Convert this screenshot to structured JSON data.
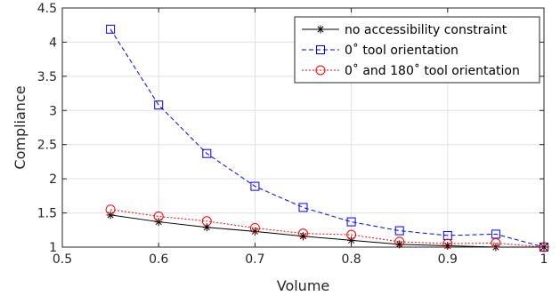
{
  "chart_data": {
    "type": "line",
    "xlabel": "Volume",
    "ylabel": "Compliance",
    "xlim": [
      0.5,
      1.0
    ],
    "ylim": [
      1.0,
      4.5
    ],
    "xticks": [
      0.5,
      0.6,
      0.7,
      0.8,
      0.9,
      1.0
    ],
    "xtick_labels": [
      "0.5",
      "0.6",
      "0.7",
      "0.8",
      "0.9",
      "1"
    ],
    "yticks": [
      1.0,
      1.5,
      2.0,
      2.5,
      3.0,
      3.5,
      4.0,
      4.5
    ],
    "ytick_labels": [
      "1",
      "1.5",
      "2",
      "2.5",
      "3",
      "3.5",
      "4",
      "4.5"
    ],
    "grid": true,
    "legend_position": "top-right",
    "x": [
      0.55,
      0.6,
      0.65,
      0.7,
      0.75,
      0.8,
      0.85,
      0.9,
      0.95,
      1.0
    ],
    "series": [
      {
        "name": "no accessibility constraint",
        "values": [
          1.47,
          1.37,
          1.29,
          1.23,
          1.16,
          1.1,
          1.04,
          1.02,
          1.0,
          1.0
        ],
        "color": "#000000",
        "line_style": "solid",
        "marker": "asterisk"
      },
      {
        "name": "0˚ tool orientation",
        "values": [
          4.19,
          3.08,
          2.37,
          1.89,
          1.58,
          1.37,
          1.24,
          1.17,
          1.19,
          1.0
        ],
        "color": "#0000ff",
        "line_style": "dashed",
        "marker": "square"
      },
      {
        "name": "0˚ and 180˚ tool orientation",
        "values": [
          1.55,
          1.45,
          1.38,
          1.28,
          1.2,
          1.18,
          1.08,
          1.05,
          1.06,
          1.0
        ],
        "color": "#ff0000",
        "line_style": "dotted",
        "marker": "circle"
      }
    ]
  }
}
